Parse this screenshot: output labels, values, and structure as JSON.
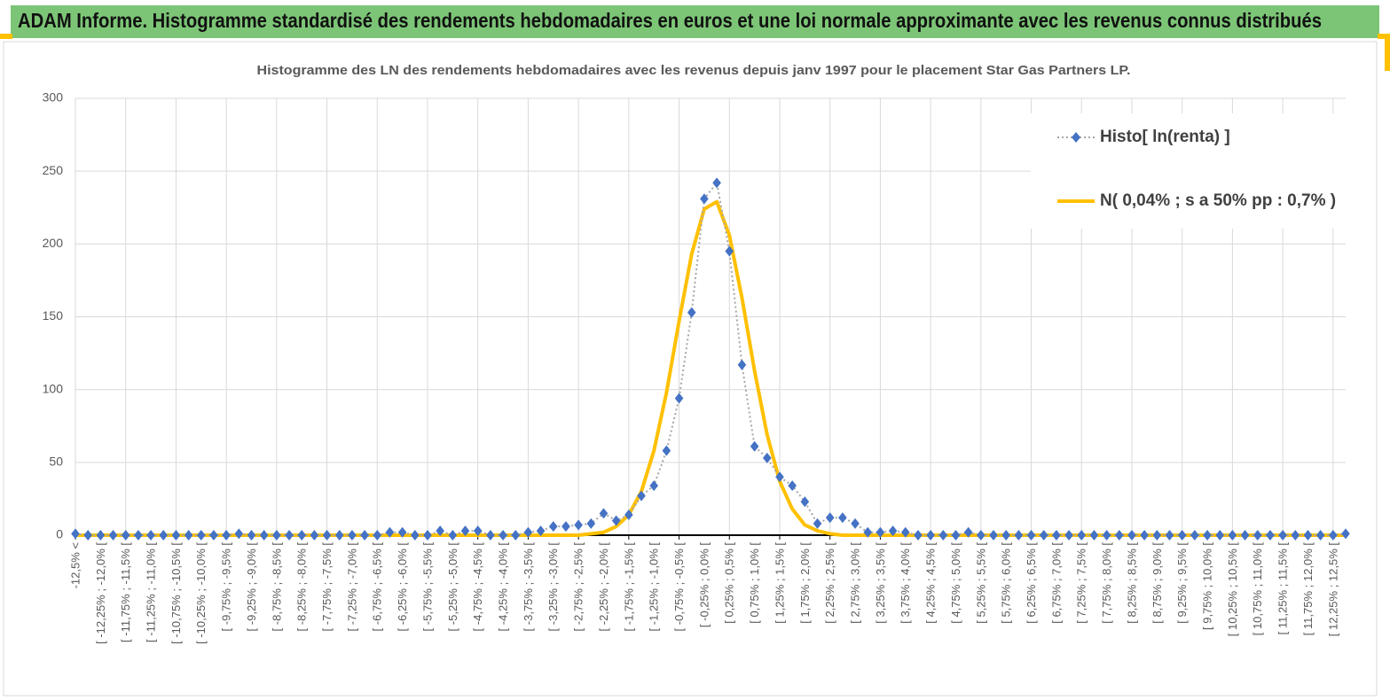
{
  "page_title": "ADAM Informe. Histogramme standardisé des rendements hebdomadaires en euros et une loi normale approximante avec les revenus connus distribués",
  "chart_data": {
    "type": "line",
    "title": "Histogramme des LN des rendements hebdomadaires avec les revenus depuis janv 1997 pour le placement Star Gas Partners LP.",
    "categories": [
      "-12,5% <",
      null,
      "[ -12,25% ; -12,0% [",
      null,
      "[ -11,75% ; -11,5% [",
      null,
      "[ -11,25% ; -11,0% [",
      null,
      "[ -10,75% ; -10,5% [",
      null,
      "[ -10,25% ; -10,0% [",
      null,
      "[ -9,75% ; -9,5% [",
      null,
      "[ -9,25% ; -9,0% [",
      null,
      "[ -8,75% ; -8,5% [",
      null,
      "[ -8,25% ; -8,0% [",
      null,
      "[ -7,75% ; -7,5% [",
      null,
      "[ -7,25% ; -7,0% [",
      null,
      "[ -6,75% ; -6,5% [",
      null,
      "[ -6,25% ; -6,0% [",
      null,
      "[ -5,75% ; -5,5% [",
      null,
      "[ -5,25% ; -5,0% [",
      null,
      "[ -4,75% ; -4,5% [",
      null,
      "[ -4,25% ; -4,0% [",
      null,
      "[ -3,75% ; -3,5% [",
      null,
      "[ -3,25% ; -3,0% [",
      null,
      "[ -2,75% ; -2,5% [",
      null,
      "[ -2,25% ; -2,0% [",
      null,
      "[ -1,75% ; -1,5% [",
      null,
      "[ -1,25% ; -1,0% [",
      null,
      "[ -0,75% ; -0,5% [",
      null,
      "[ -0,25% ; 0,0% [",
      null,
      "[ 0,25% ; 0,5% [",
      null,
      "[ 0,75% ; 1,0% [",
      null,
      "[ 1,25% ; 1,5% [",
      null,
      "[ 1,75% ; 2,0% [",
      null,
      "[ 2,25% ; 2,5% [",
      null,
      "[ 2,75% ; 3,0% [",
      null,
      "[ 3,25% ; 3,5% [",
      null,
      "[ 3,75% ; 4,0% [",
      null,
      "[ 4,25% ; 4,5% [",
      null,
      "[ 4,75% ; 5,0% [",
      null,
      "[ 5,25% ; 5,5% [",
      null,
      "[ 5,75% ; 6,0% [",
      null,
      "[ 6,25% ; 6,5% [",
      null,
      "[ 6,75% ; 7,0% [",
      null,
      "[ 7,25% ; 7,5% [",
      null,
      "[ 7,75% ; 8,0% [",
      null,
      "[ 8,25% ; 8,5% [",
      null,
      "[ 8,75% ; 9,0% [",
      null,
      "[ 9,25% ; 9,5% [",
      null,
      "[ 9,75% ; 10,0% [",
      null,
      "[ 10,25% ; 10,5% [",
      null,
      "[ 10,75% ; 11,0% [",
      null,
      "[ 11,25% ; 11,5% [",
      null,
      "[ 11,75% ; 12,0% [",
      null,
      "[ 12,25% ; 12,5% [",
      null
    ],
    "series": [
      {
        "name": "Histo[ ln(renta) ]",
        "color": "#4472c4",
        "line_color": "#a6a6a6",
        "marker": "diamond",
        "line_style": "dotted",
        "values": [
          1,
          0,
          0,
          0,
          0,
          0,
          0,
          0,
          0,
          0,
          0,
          0,
          0,
          1,
          0,
          0,
          0,
          0,
          0,
          0,
          0,
          0,
          0,
          0,
          0,
          2,
          2,
          0,
          0,
          3,
          0,
          3,
          3,
          0,
          0,
          0,
          2,
          3,
          6,
          6,
          7,
          8,
          15,
          10,
          14,
          27,
          34,
          58,
          94,
          153,
          231,
          242,
          195,
          117,
          61,
          53,
          40,
          34,
          23,
          8,
          12,
          12,
          8,
          2,
          2,
          3,
          2,
          0,
          0,
          0,
          0,
          2,
          0,
          0,
          0,
          0,
          0,
          0,
          0,
          0,
          0,
          0,
          0,
          0,
          0,
          0,
          0,
          0,
          0,
          0,
          0,
          0,
          0,
          0,
          0,
          0,
          0,
          0,
          0,
          0,
          0,
          1
        ]
      },
      {
        "name": "N( 0,04% ; s a 50% pp : 0,7% )",
        "color": "#ffc000",
        "line_color": "#ffc000",
        "marker": "none",
        "line_style": "solid",
        "values": [
          0,
          0,
          0,
          0,
          0,
          0,
          0,
          0,
          0,
          0,
          0,
          0,
          0,
          0,
          0,
          0,
          0,
          0,
          0,
          0,
          0,
          0,
          0,
          0,
          0,
          0,
          0,
          0,
          0,
          0,
          0,
          0,
          0,
          0,
          0,
          0,
          0,
          0,
          0,
          0,
          0,
          1,
          2,
          6,
          14,
          30,
          58,
          98,
          147,
          193,
          224,
          229,
          206,
          163,
          113,
          69,
          37,
          18,
          7,
          3,
          1,
          0,
          0,
          0,
          0,
          0,
          0,
          0,
          0,
          0,
          0,
          0,
          0,
          0,
          0,
          0,
          0,
          0,
          0,
          0,
          0,
          0,
          0,
          0,
          0,
          0,
          0,
          0,
          0,
          0,
          0,
          0,
          0,
          0,
          0,
          0,
          0,
          0,
          0,
          0,
          0,
          0
        ]
      }
    ],
    "ylim": [
      0,
      300
    ],
    "yticks": [
      0,
      50,
      100,
      150,
      200,
      250,
      300
    ],
    "grid": true,
    "legend": "top-right"
  }
}
